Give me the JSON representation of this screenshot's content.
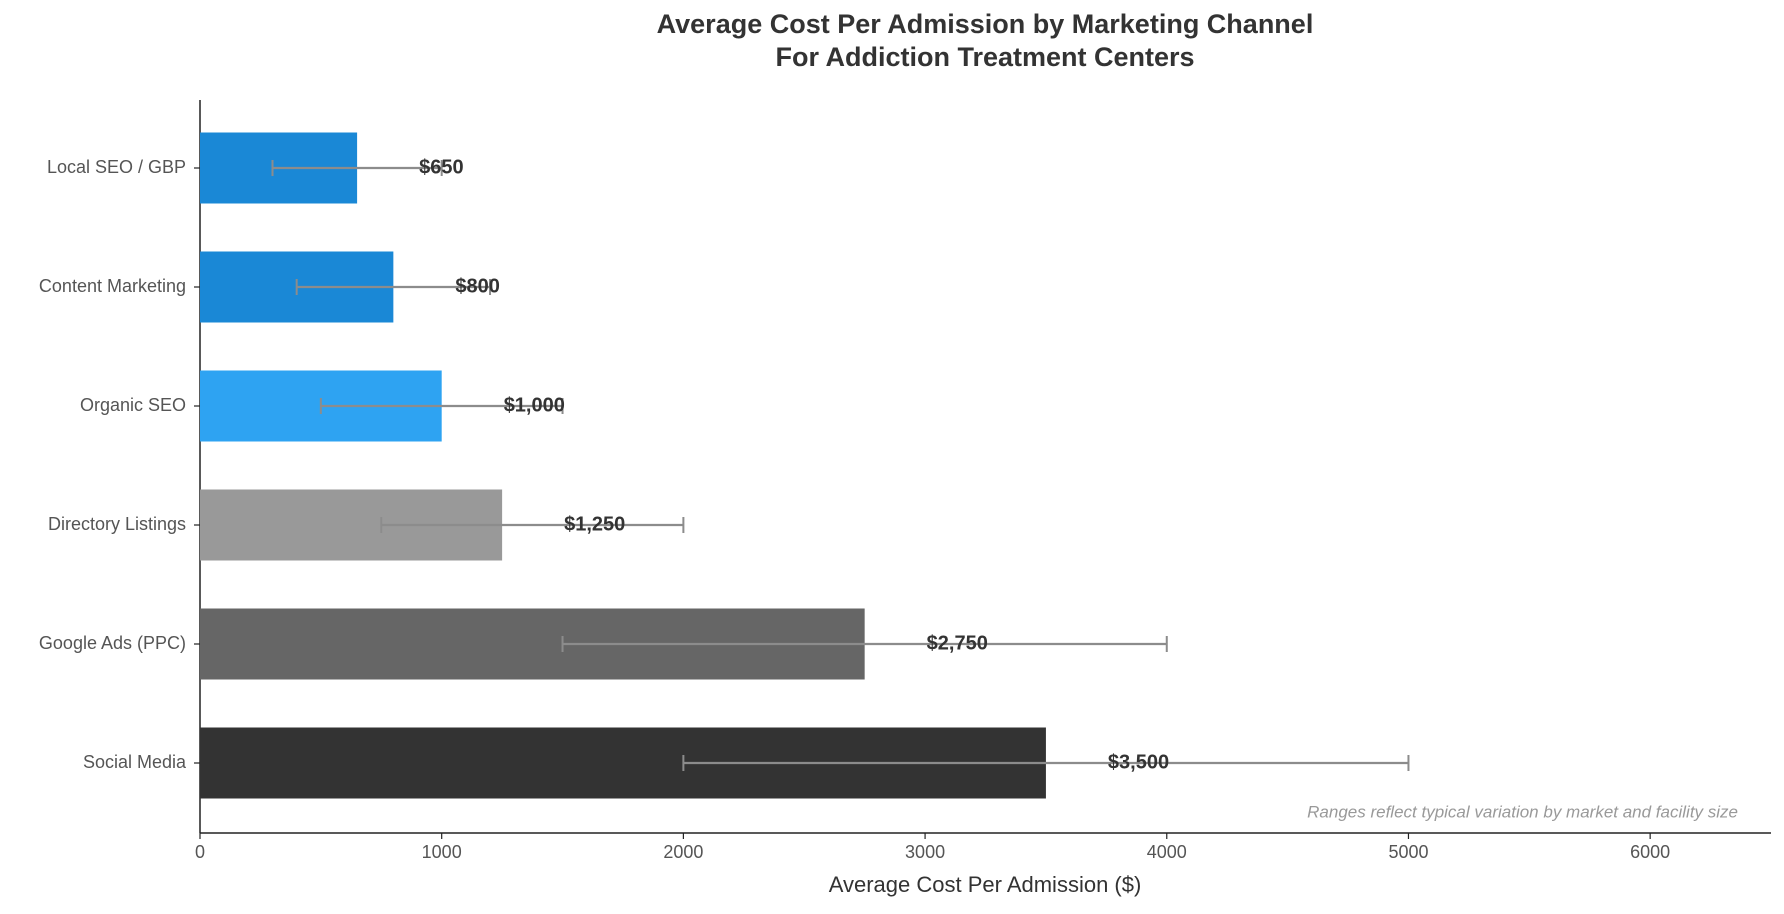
{
  "chart_data": {
    "type": "hbar_error",
    "title": "Average Cost Per Admission by Marketing Channel",
    "subtitle": "For Addiction Treatment Centers",
    "x_label": "Average Cost Per Admission ($)",
    "note": "Ranges reflect typical variation by market and facility size",
    "categories": [
      "Local SEO / GBP",
      "Content Marketing",
      "Organic SEO",
      "Directory Listings",
      "Google Ads (PPC)",
      "Social Media"
    ],
    "values": [
      650,
      800,
      1000,
      1250,
      2750,
      3500
    ],
    "value_labels": [
      "$650",
      "$800",
      "$1,000",
      "$1,250",
      "$2,750",
      "$3,500"
    ],
    "low": [
      300,
      400,
      500,
      750,
      1500,
      2000
    ],
    "high": [
      1000,
      1200,
      1500,
      2000,
      4000,
      5000
    ],
    "colors": [
      "#1a88d6",
      "#1a88d6",
      "#2ea3f2",
      "#999999",
      "#666666",
      "#333333"
    ],
    "error_color": "#8c8c8c",
    "xlim": [
      0,
      6500
    ],
    "xticks": [
      0,
      1000,
      2000,
      3000,
      4000,
      5000,
      6000
    ]
  }
}
